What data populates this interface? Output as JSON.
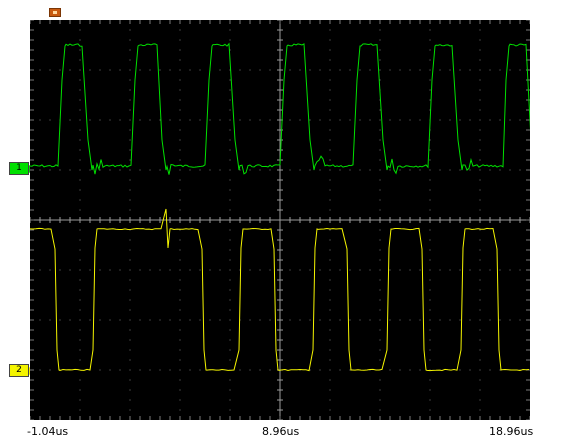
{
  "trigger_marker": {
    "icon": "trigger-position-icon",
    "color": "#c85a10"
  },
  "channels": [
    {
      "label": "1",
      "color": "#00e000"
    },
    {
      "label": "2",
      "color": "#f5f500"
    }
  ],
  "time_axis": {
    "labels": [
      "-1.04us",
      "8.96us",
      "18.96us"
    ]
  },
  "display": {
    "background": "#000000",
    "grid_color": "#7a7a7a",
    "divisions_x": 10,
    "divisions_y": 8
  }
}
